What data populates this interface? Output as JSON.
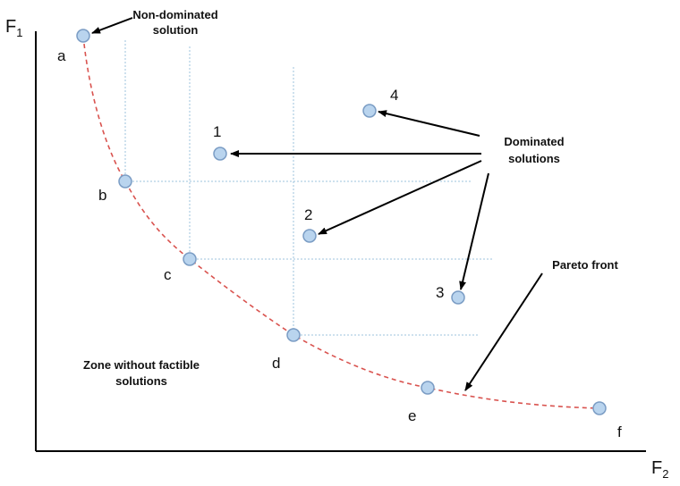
{
  "axes": {
    "y_label": "F",
    "y_sub": "1",
    "x_label": "F",
    "x_sub": "2"
  },
  "points": {
    "a": "a",
    "b": "b",
    "c": "c",
    "d": "d",
    "e": "e",
    "f": "f",
    "p1": "1",
    "p2": "2",
    "p3": "3",
    "p4": "4"
  },
  "annotations": {
    "nondominated_line1": "Non-dominated",
    "nondominated_line2": "solution",
    "dominated_line1": "Dominated",
    "dominated_line2": "solutions",
    "pareto": "Pareto front",
    "zone_line1": "Zone without factible",
    "zone_line2": "solutions"
  },
  "colors": {
    "marker_fill": "#b9d4ee",
    "marker_stroke": "#7a9cc4",
    "front": "#d9534f",
    "guides": "#9ec3dd",
    "axis": "#000000"
  }
}
